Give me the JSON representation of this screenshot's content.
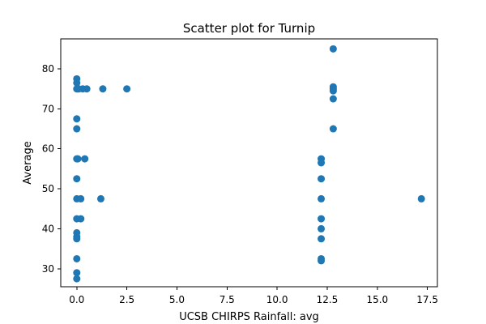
{
  "chart_data": {
    "type": "scatter",
    "title": "Scatter plot for Turnip",
    "xlabel": "UCSB CHIRPS Rainfall: avg",
    "ylabel": "Average",
    "xlim": [
      -0.8,
      18.0
    ],
    "ylim": [
      25.5,
      87.5
    ],
    "xticks": [
      0.0,
      2.5,
      5.0,
      7.5,
      10.0,
      12.5,
      15.0,
      17.5
    ],
    "xtick_labels": [
      "0.0",
      "2.5",
      "5.0",
      "7.5",
      "10.0",
      "12.5",
      "15.0",
      "17.5"
    ],
    "yticks": [
      30,
      40,
      50,
      60,
      70,
      80
    ],
    "ytick_labels": [
      "30",
      "40",
      "50",
      "60",
      "70",
      "80"
    ],
    "grid": false,
    "marker_color": "#1f77b4",
    "series": [
      {
        "points": [
          {
            "x": 0.0,
            "y": 77.5
          },
          {
            "x": 0.0,
            "y": 76.5
          },
          {
            "x": 0.0,
            "y": 75.0
          },
          {
            "x": 0.05,
            "y": 75.0
          },
          {
            "x": 0.1,
            "y": 75.0
          },
          {
            "x": 0.3,
            "y": 75.0
          },
          {
            "x": 0.5,
            "y": 75.0
          },
          {
            "x": 1.3,
            "y": 75.0
          },
          {
            "x": 2.5,
            "y": 75.0
          },
          {
            "x": 0.0,
            "y": 67.5
          },
          {
            "x": 0.0,
            "y": 65.0
          },
          {
            "x": 0.0,
            "y": 57.5
          },
          {
            "x": 0.05,
            "y": 57.5
          },
          {
            "x": 0.4,
            "y": 57.5
          },
          {
            "x": 0.0,
            "y": 52.5
          },
          {
            "x": 0.0,
            "y": 47.5
          },
          {
            "x": 0.2,
            "y": 47.5
          },
          {
            "x": 1.2,
            "y": 47.5
          },
          {
            "x": 0.0,
            "y": 42.5
          },
          {
            "x": 0.2,
            "y": 42.5
          },
          {
            "x": 0.0,
            "y": 39.0
          },
          {
            "x": 0.0,
            "y": 38.0
          },
          {
            "x": 0.0,
            "y": 37.5
          },
          {
            "x": 0.0,
            "y": 32.5
          },
          {
            "x": 0.0,
            "y": 29.0
          },
          {
            "x": 0.0,
            "y": 27.5
          },
          {
            "x": 12.2,
            "y": 57.5
          },
          {
            "x": 12.2,
            "y": 56.5
          },
          {
            "x": 12.2,
            "y": 52.5
          },
          {
            "x": 12.2,
            "y": 47.5
          },
          {
            "x": 12.2,
            "y": 42.5
          },
          {
            "x": 12.2,
            "y": 40.0
          },
          {
            "x": 12.2,
            "y": 37.5
          },
          {
            "x": 12.2,
            "y": 32.5
          },
          {
            "x": 12.2,
            "y": 32.0
          },
          {
            "x": 12.8,
            "y": 85.0
          },
          {
            "x": 12.8,
            "y": 75.5
          },
          {
            "x": 12.8,
            "y": 75.0
          },
          {
            "x": 12.8,
            "y": 74.5
          },
          {
            "x": 12.8,
            "y": 72.5
          },
          {
            "x": 12.8,
            "y": 65.0
          },
          {
            "x": 17.2,
            "y": 47.5
          }
        ]
      }
    ]
  }
}
